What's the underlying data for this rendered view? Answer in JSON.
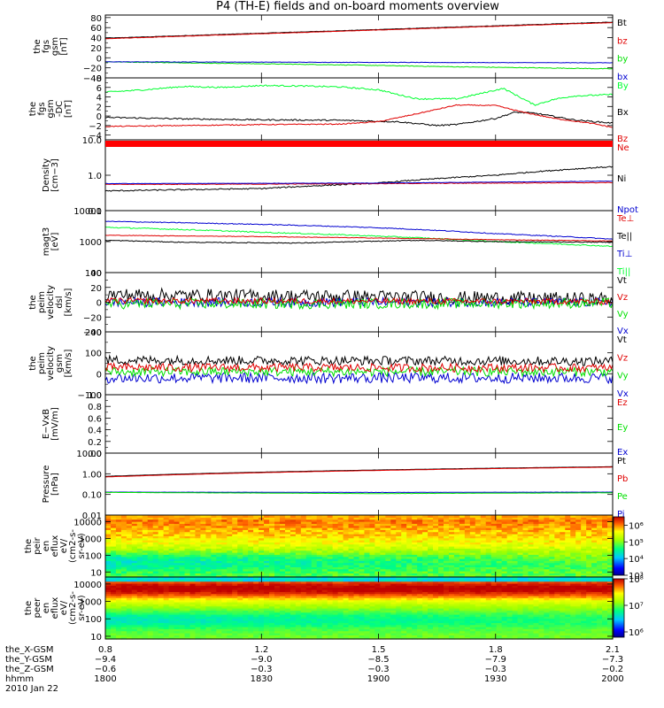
{
  "title": "P4 (TH-E) fields and on-board moments overview",
  "colors": {
    "black": "#000000",
    "red": "#e00000",
    "green": "#00e000",
    "blue": "#0000d0",
    "bright_green": "#00ff30"
  },
  "chart_data": [
    {
      "id": "fgs_gsm",
      "type": "line",
      "ylabel": [
        "the",
        "fgs",
        "gsm",
        "[nT]"
      ],
      "ylim": [
        -40,
        85
      ],
      "log": false,
      "yticks": [
        "80",
        "60",
        "40",
        "20",
        "0",
        "−20",
        "−40"
      ],
      "ytick_values": [
        80,
        60,
        40,
        20,
        0,
        -20,
        -40
      ],
      "legend": [
        "Bt",
        "bz",
        "by",
        "bx"
      ],
      "series": [
        {
          "name": "Bt",
          "color": "black",
          "x": [
            0.8,
            2.1
          ],
          "values": [
            39,
            71
          ],
          "noise": 0.4
        },
        {
          "name": "bz",
          "color": "red",
          "x": [
            0.8,
            2.1
          ],
          "values": [
            38,
            70
          ],
          "noise": 0.4
        },
        {
          "name": "by",
          "color": "green",
          "x": [
            0.8,
            1.0,
            1.4,
            1.7,
            2.1
          ],
          "values": [
            -8,
            -10,
            -14,
            -18,
            -22
          ],
          "noise": 0.6
        },
        {
          "name": "bx",
          "color": "blue",
          "x": [
            0.8,
            1.4,
            2.1
          ],
          "values": [
            -8,
            -9,
            -10
          ],
          "noise": 0.4
        }
      ]
    },
    {
      "id": "fgs_gsm_dc",
      "type": "line",
      "ylabel": [
        "the",
        "fgs",
        "gsm",
        "-DC",
        "[nT]"
      ],
      "ylim": [
        -5,
        8
      ],
      "log": false,
      "yticks": [
        "8",
        "6",
        "4",
        "2",
        "0",
        "−2",
        "−4"
      ],
      "ytick_values": [
        8,
        6,
        4,
        2,
        0,
        -2,
        -4
      ],
      "legend": [
        "By",
        "Bx",
        "Bz"
      ],
      "series": [
        {
          "name": "By",
          "color": "bright_green",
          "x": [
            0.8,
            0.9,
            1.0,
            1.1,
            1.2,
            1.3,
            1.4,
            1.5,
            1.55,
            1.6,
            1.7,
            1.75,
            1.82,
            1.9,
            1.95,
            2.0,
            2.1
          ],
          "values": [
            5,
            5.5,
            6.2,
            6,
            6.4,
            6.3,
            6.1,
            5.5,
            4.5,
            3.6,
            3.6,
            4.5,
            5.8,
            2.3,
            3.5,
            4.2,
            4.5
          ],
          "noise": 0.15
        },
        {
          "name": "Bx",
          "color": "black",
          "x": [
            0.8,
            1.0,
            1.2,
            1.4,
            1.55,
            1.65,
            1.7,
            1.8,
            1.85,
            1.9,
            2.0,
            2.1
          ],
          "values": [
            -0.3,
            -0.6,
            -0.8,
            -0.9,
            -1.2,
            -2,
            -1.8,
            -0.5,
            0.8,
            0.6,
            -0.8,
            -1.5
          ],
          "noise": 0.15
        },
        {
          "name": "Bz",
          "color": "red",
          "x": [
            0.8,
            1.2,
            1.4,
            1.5,
            1.6,
            1.7,
            1.8,
            1.87,
            1.95,
            2.05,
            2.1
          ],
          "values": [
            -2.2,
            -1.8,
            -1.7,
            -1.2,
            0.5,
            2.3,
            2.2,
            0.8,
            -0.5,
            -1.6,
            -2.4
          ],
          "noise": 0.1
        }
      ]
    },
    {
      "id": "density",
      "type": "line",
      "ylabel": [
        "Density",
        "[cm−3]"
      ],
      "ylim": [
        0.1,
        10
      ],
      "log": true,
      "yticks": [
        "10.0",
        "1.0",
        "0.1"
      ],
      "ytick_values": [
        10,
        1,
        0.1
      ],
      "legend": [
        "Ne",
        "Ni",
        "Npot"
      ],
      "legend_extra": "Ni",
      "series": [
        {
          "name": "Ni",
          "color": "black",
          "x": [
            0.8,
            1.2,
            1.5,
            1.8,
            2.1
          ],
          "values": [
            0.36,
            0.42,
            0.6,
            1.0,
            1.75
          ],
          "noise": 0.04
        },
        {
          "name": "Ne",
          "color": "red",
          "x": [
            0.8,
            1.2,
            1.5,
            1.8,
            2.1
          ],
          "values": [
            0.55,
            0.56,
            0.58,
            0.6,
            0.62
          ],
          "noise": 0.02
        },
        {
          "name": "Npot",
          "color": "blue",
          "x": [
            0.8,
            1.5,
            2.1
          ],
          "values": [
            0.58,
            0.6,
            0.68
          ],
          "noise": 0.01
        }
      ]
    },
    {
      "id": "mag_temp",
      "type": "line",
      "ylabel": [
        "magt3",
        "[eV]"
      ],
      "ylim": [
        100,
        10000
      ],
      "log": true,
      "yticks": [
        "10000",
        "1000",
        "100"
      ],
      "ytick_values": [
        10000,
        1000,
        100
      ],
      "legend": [
        "Te⊥",
        "Te||",
        "Ti⊥",
        "Ti||"
      ],
      "series": [
        {
          "name": "Ti⊥",
          "color": "blue",
          "x": [
            0.8,
            1.2,
            1.5,
            1.8,
            2.1
          ],
          "values": [
            4500,
            3600,
            2800,
            1800,
            1200
          ],
          "noise": 0.03
        },
        {
          "name": "Ti||",
          "color": "bright_green",
          "x": [
            0.8,
            1.2,
            1.5,
            1.8,
            2.1
          ],
          "values": [
            2900,
            2000,
            1500,
            1000,
            700
          ],
          "noise": 0.04
        },
        {
          "name": "Te⊥",
          "color": "red",
          "x": [
            0.8,
            1.2,
            1.5,
            1.8,
            2.1
          ],
          "values": [
            1600,
            1450,
            1300,
            1150,
            1050
          ],
          "noise": 0.02
        },
        {
          "name": "Te||",
          "color": "black",
          "x": [
            0.8,
            1.0,
            1.3,
            1.6,
            1.8,
            2.1
          ],
          "values": [
            1100,
            950,
            900,
            1100,
            1000,
            950
          ],
          "noise": 0.03
        }
      ]
    },
    {
      "id": "peim_velocity_dsl",
      "type": "line",
      "ylabel": [
        "the",
        "peim",
        "velocity",
        "dsl",
        "[km/s]"
      ],
      "ylim": [
        -40,
        40
      ],
      "log": false,
      "yticks": [
        "40",
        "20",
        "0",
        "−20",
        "−40"
      ],
      "ytick_values": [
        40,
        20,
        0,
        -20,
        -40
      ],
      "legend": [
        "Vt",
        "Vz",
        "Vy",
        "Vx"
      ],
      "series": [
        {
          "name": "Vt",
          "color": "black",
          "x": [
            0.8,
            1.4,
            2.1
          ],
          "values": [
            10,
            8,
            4
          ],
          "noise": 9
        },
        {
          "name": "Vx",
          "color": "blue",
          "x": [
            0.8,
            2.1
          ],
          "values": [
            0,
            0
          ],
          "noise": 6
        },
        {
          "name": "Vy",
          "color": "green",
          "x": [
            0.8,
            1.4,
            2.1
          ],
          "values": [
            -2,
            -2,
            -1
          ],
          "noise": 7
        },
        {
          "name": "Vz",
          "color": "red",
          "x": [
            0.8,
            2.1
          ],
          "values": [
            2,
            1
          ],
          "noise": 4
        }
      ]
    },
    {
      "id": "peim_velocity_gsm",
      "type": "line",
      "ylabel": [
        "the",
        "peim",
        "velocity",
        "gsm",
        "[km/s]"
      ],
      "ylim": [
        -100,
        200
      ],
      "log": false,
      "yticks": [
        "200",
        "100",
        "0",
        "−100"
      ],
      "ytick_values": [
        200,
        100,
        0,
        -100
      ],
      "legend": [
        "Vt",
        "Vz",
        "Vy",
        "Vx"
      ],
      "series": [
        {
          "name": "Vt",
          "color": "black",
          "x": [
            0.8,
            2.1
          ],
          "values": [
            65,
            60
          ],
          "noise": 22
        },
        {
          "name": "Vx",
          "color": "blue",
          "x": [
            0.8,
            2.1
          ],
          "values": [
            -20,
            -20
          ],
          "noise": 25
        },
        {
          "name": "Vy",
          "color": "green",
          "x": [
            0.8,
            2.1
          ],
          "values": [
            10,
            10
          ],
          "noise": 22
        },
        {
          "name": "Vz",
          "color": "red",
          "x": [
            0.8,
            2.1
          ],
          "values": [
            30,
            28
          ],
          "noise": 20
        }
      ]
    },
    {
      "id": "e_vxb",
      "type": "line",
      "ylabel": [
        "E−VxB",
        "[mV/m]"
      ],
      "ylim": [
        0,
        1
      ],
      "log": false,
      "yticks": [
        "1.0",
        "0.8",
        "0.6",
        "0.4",
        "0.2",
        "0.0"
      ],
      "ytick_values": [
        1.0,
        0.8,
        0.6,
        0.4,
        0.2,
        0.0
      ],
      "legend": [
        "Ez",
        "Ey",
        "Ex"
      ],
      "series": []
    },
    {
      "id": "pressure",
      "type": "line",
      "ylabel": [
        "Pressure",
        "[nPa]"
      ],
      "ylim": [
        0.01,
        10
      ],
      "log": true,
      "yticks": [
        "10.00",
        "1.00",
        "0.10",
        "0.01"
      ],
      "ytick_values": [
        10,
        1,
        0.1,
        0.01
      ],
      "legend": [
        "Pt",
        "Pb",
        "Pe",
        "Pi"
      ],
      "series": [
        {
          "name": "Pt",
          "color": "black",
          "x": [
            0.8,
            2.1
          ],
          "values": [
            0.75,
            2.2
          ],
          "noise": 0.005
        },
        {
          "name": "Pb",
          "color": "red",
          "x": [
            0.8,
            2.1
          ],
          "values": [
            0.7,
            2.1
          ],
          "noise": 0.005
        },
        {
          "name": "Pi",
          "color": "blue",
          "x": [
            0.8,
            1.5,
            2.1
          ],
          "values": [
            0.13,
            0.125,
            0.13
          ],
          "noise": 0.01
        },
        {
          "name": "Pe",
          "color": "green",
          "x": [
            0.8,
            1.5,
            2.1
          ],
          "values": [
            0.125,
            0.11,
            0.12
          ],
          "noise": 0.01
        }
      ]
    },
    {
      "id": "peir_en_eflux",
      "type": "heatmap",
      "ylabel": [
        "the",
        "peir",
        "en",
        "eflux",
        "eV/",
        "(cm2-s-",
        "sr-eV)"
      ],
      "ylim": [
        5,
        25000
      ],
      "log": true,
      "yticks": [
        "10000",
        "1000",
        "100",
        "10"
      ],
      "ytick_values": [
        10000,
        1000,
        100,
        10
      ],
      "colorbar": {
        "ticks": [
          "10⁶",
          "10⁵",
          "10⁴",
          "10³"
        ],
        "tick_values": [
          6,
          5,
          4,
          3
        ],
        "range": [
          3,
          6.5
        ]
      }
    },
    {
      "id": "peer_en_eflux",
      "type": "heatmap",
      "ylabel": [
        "the",
        "peer",
        "en",
        "eflux",
        "eV/",
        "(cm2-s-",
        "sr-eV)"
      ],
      "ylim": [
        7,
        25000
      ],
      "log": true,
      "yticks": [
        "10000",
        "1000",
        "100",
        "10"
      ],
      "ytick_values": [
        10000,
        1000,
        100,
        10
      ],
      "colorbar": {
        "ticks": [
          "10⁸",
          "10⁷",
          "10⁶"
        ],
        "tick_values": [
          8,
          7,
          6
        ],
        "range": [
          5.8,
          8
        ]
      }
    }
  ],
  "x_axis": {
    "xlim": [
      0.8,
      2.1
    ],
    "tick_positions": [
      0.8,
      1.2,
      1.5,
      1.8,
      2.1
    ],
    "rows": [
      {
        "name": "the_X-GSM",
        "values": [
          "0.8",
          "1.2",
          "1.5",
          "1.8",
          "2.1"
        ]
      },
      {
        "name": "the_Y-GSM",
        "values": [
          "−9.4",
          "−9.0",
          "−8.5",
          "−7.9",
          "−7.3"
        ]
      },
      {
        "name": "the_Z-GSM",
        "values": [
          "−0.6",
          "−0.3",
          "−0.3",
          "−0.3",
          "−0.2"
        ]
      },
      {
        "name": "hhmm",
        "values": [
          "1800",
          "1830",
          "1900",
          "1930",
          "2000"
        ]
      }
    ],
    "date": "2010 Jan 22"
  }
}
